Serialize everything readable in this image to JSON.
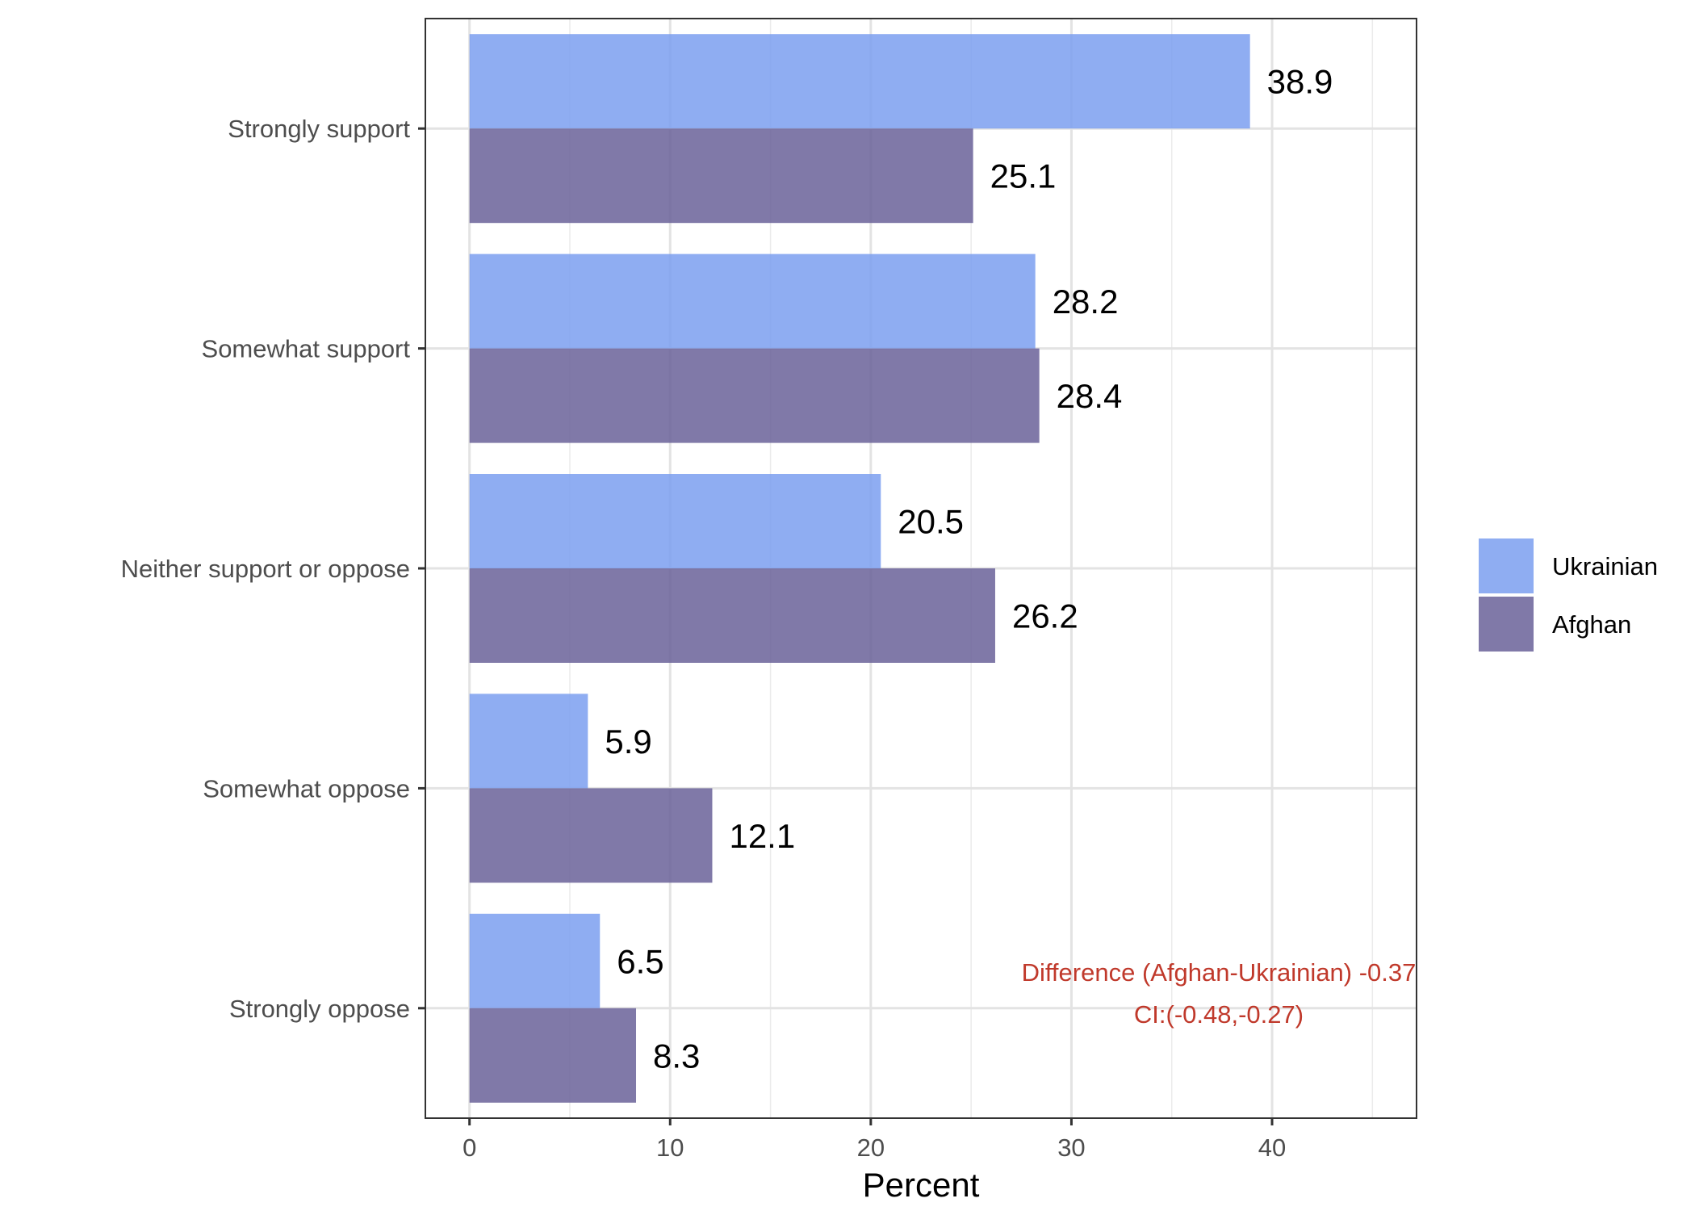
{
  "chart_data": {
    "type": "bar",
    "orientation": "horizontal",
    "title": "",
    "xlabel": "Percent",
    "ylabel": "",
    "xlim": [
      -2.2,
      47.2
    ],
    "xticks": [
      0,
      10,
      20,
      30,
      40
    ],
    "xtick_labels": [
      "0",
      "10",
      "20",
      "30",
      "40"
    ],
    "grid": true,
    "legend_position": "right",
    "categories": [
      "Strongly support",
      "Somewhat support",
      "Neither support or oppose",
      "Somewhat oppose",
      "Strongly oppose"
    ],
    "series": [
      {
        "name": "Ukrainian",
        "color": "#7b9ff0",
        "values": [
          38.9,
          28.2,
          20.5,
          5.9,
          6.5
        ],
        "labels": [
          "38.9",
          "28.2",
          "20.5",
          "5.9",
          "6.5"
        ]
      },
      {
        "name": "Afghan",
        "color": "#6a6199",
        "values": [
          25.1,
          28.4,
          26.2,
          12.1,
          8.3
        ],
        "labels": [
          "25.1",
          "28.4",
          "26.2",
          "12.1",
          "8.3"
        ]
      }
    ],
    "annotation": {
      "lines": [
        "Difference (Afghan-Ukrainian) -0.37",
        "CI:(-0.48,-0.27)"
      ],
      "color": "#c0392b"
    }
  }
}
